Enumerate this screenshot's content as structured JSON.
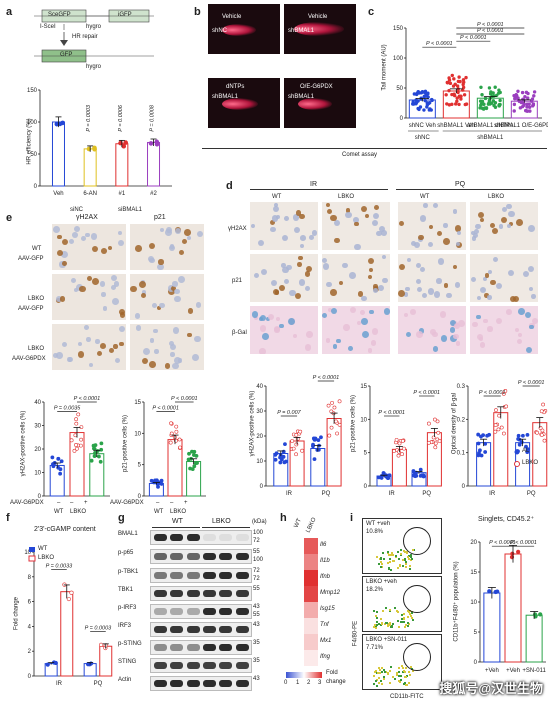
{
  "panels": {
    "a": {
      "letter": "a",
      "schematic": {
        "scegfp": "SceGFP",
        "igfp": "iGFP",
        "isce": "I-SceI",
        "hygro": "hygro",
        "hr": "HR repair",
        "gfp": "GFP",
        "hygro2": "hygro"
      },
      "ylabel": "HR efficiency (%)",
      "yticks": [
        "0",
        "50",
        "100",
        "150"
      ],
      "categories": [
        "Veh",
        "6-AN",
        "#1",
        "#2"
      ],
      "pvals": [
        "P = 0.0003",
        "P = 0.0006",
        "P = 0.0008"
      ],
      "groups": [
        "siNC",
        "siBMAL1"
      ]
    },
    "b": {
      "letter": "b",
      "labels": [
        "Vehicle",
        "Vehicle",
        "dNTPs",
        "O/E-G6PDX"
      ],
      "sublabels": [
        "shNC",
        "shBMAL1",
        "shBMAL1",
        "shBMAL1"
      ],
      "footer": "Comet assay"
    },
    "c": {
      "letter": "c",
      "ylabel": "Tail moment (AU)",
      "yticks": [
        "0",
        "50",
        "100",
        "150"
      ],
      "categories": [
        "Veh",
        "Veh",
        "dNTPs",
        "O/E-G6PDX"
      ],
      "groups": [
        "shNC",
        "shBMAL1"
      ],
      "pvals": [
        "P < 0.0001",
        "P < 0.0001",
        "P < 0.0001",
        "P < 0.0001"
      ]
    },
    "d": {
      "letter": "d",
      "headers": [
        "IR",
        "PQ"
      ],
      "cols": [
        "WT",
        "LBKO",
        "WT",
        "LBKO"
      ],
      "rows": [
        "γH2AX",
        "p21",
        "β-Gal"
      ],
      "charts": [
        {
          "ylabel": "γH2AX-positive cells (%)",
          "pvals": [
            "P = 0.007",
            "P < 0.0001"
          ],
          "yticks": [
            "0",
            "10",
            "20",
            "30",
            "40"
          ]
        },
        {
          "ylabel": "p21-positive cells (%)",
          "pvals": [
            "P < 0.0001",
            "P < 0.0001"
          ],
          "yticks": [
            "0",
            "5",
            "10",
            "15"
          ]
        },
        {
          "ylabel": "Optical density of β-gal",
          "pvals": [
            "P < 0.0001",
            "P < 0.0001"
          ],
          "yticks": [
            "0",
            "0.1",
            "0.2",
            "0.3"
          ]
        }
      ],
      "xcats": [
        "IR",
        "PQ"
      ],
      "legend": [
        "AL",
        "LBKO"
      ]
    },
    "e": {
      "letter": "e",
      "cols": [
        "γH2AX",
        "p21"
      ],
      "rows": [
        [
          "WT",
          "AAV-GFP"
        ],
        [
          "LBKO",
          "AAV-GFP"
        ],
        [
          "LBKO",
          "AAV-G6PDX"
        ]
      ],
      "charts": [
        {
          "ylabel": "γH2AX-positive cells (%)",
          "pvals": [
            "P = 0.0035",
            "P < 0.0001"
          ],
          "yticks": [
            "0",
            "10",
            "20",
            "30",
            "40"
          ]
        },
        {
          "ylabel": "p21-positive cells (%)",
          "pvals": [
            "P < 0.0001",
            "P < 0.0001"
          ],
          "yticks": [
            "0",
            "5",
            "10",
            "15"
          ]
        }
      ],
      "aav": "AAV-G6PDX",
      "signs": [
        "–",
        "–",
        "+"
      ],
      "xcats": [
        "WT",
        "LBKO"
      ]
    },
    "f": {
      "letter": "f",
      "title": "2'3'-cGAMP content",
      "legend": [
        "WT",
        "LBKO"
      ],
      "ylabel": "Fold change",
      "yticks": [
        "0",
        "2",
        "4",
        "6",
        "8",
        "10"
      ],
      "pvals": [
        "P = 0.0033",
        "P = 0.0003"
      ],
      "xcats": [
        "IR",
        "PQ"
      ]
    },
    "g": {
      "letter": "g",
      "groups": [
        "WT",
        "LBKO"
      ],
      "kda": "(kDa)",
      "proteins": [
        "BMAL1",
        "p-p65",
        "p-TBK1",
        "TBK1",
        "p-IRF3",
        "IRF3",
        "p-STING",
        "STING",
        "Actin"
      ],
      "weights": [
        "100",
        "72",
        "55",
        "100",
        "72",
        "72",
        "55",
        "43",
        "55",
        "43",
        "35",
        "35",
        "43"
      ]
    },
    "h": {
      "letter": "h",
      "cols": [
        "WT",
        "LBKO"
      ],
      "genes": [
        "Il6",
        "Il1b",
        "Ifnb",
        "Mmp12",
        "Isg15",
        "Tnf",
        "Mx1",
        "Ifng"
      ],
      "scale": [
        "0",
        "1",
        "2",
        "3"
      ],
      "scale_label": [
        "Fold",
        "change"
      ]
    },
    "i": {
      "letter": "i",
      "flow": [
        {
          "name": "WT +veh",
          "pct": "10.8%"
        },
        {
          "name": "LBKO +veh",
          "pct": "18.2%"
        },
        {
          "name": "LBKO +SN-011",
          "pct": "7.71%"
        }
      ],
      "yaxis": "F4/80-PE",
      "xaxis": "CD11b-FITC",
      "bar_title": "Singlets, CD45.2⁺",
      "bar_ylabel": "CD11b⁺F4/80⁺ population (%)",
      "yticks": [
        "0",
        "5",
        "10",
        "15",
        "20"
      ],
      "pvals": [
        "P < 0.0001",
        "P < 0.0001"
      ],
      "xcats": [
        "+Veh",
        "+Veh",
        "+SN-011"
      ]
    },
    "watermark": "搜狐号@汉世生物"
  },
  "chart_data": [
    {
      "type": "bar",
      "panel": "a",
      "categories": [
        "Veh",
        "6-AN",
        "#1",
        "#2"
      ],
      "values": [
        100,
        58,
        66,
        68
      ],
      "ylabel": "HR efficiency (%)",
      "ylim": [
        0,
        150
      ]
    },
    {
      "type": "bar",
      "panel": "c",
      "categories": [
        "shNC Veh",
        "shBMAL1 Veh",
        "shBMAL1 dNTPs",
        "shBMAL1 O/E-G6PDX"
      ],
      "values": [
        30,
        45,
        33,
        28
      ],
      "ylabel": "Tail moment (AU)",
      "ylim": [
        0,
        150
      ]
    },
    {
      "type": "bar",
      "panel": "d-1",
      "categories": [
        "IR",
        "PQ"
      ],
      "series": [
        {
          "name": "AL",
          "values": [
            13,
            15
          ]
        },
        {
          "name": "LBKO",
          "values": [
            18,
            27
          ]
        }
      ],
      "ylabel": "γH2AX-positive cells (%)",
      "ylim": [
        0,
        40
      ]
    },
    {
      "type": "bar",
      "panel": "d-2",
      "categories": [
        "IR",
        "PQ"
      ],
      "series": [
        {
          "name": "AL",
          "values": [
            1.5,
            2.0
          ]
        },
        {
          "name": "LBKO",
          "values": [
            5.5,
            8
          ]
        }
      ],
      "ylabel": "p21-positive cells (%)",
      "ylim": [
        0,
        15
      ]
    },
    {
      "type": "bar",
      "panel": "d-3",
      "categories": [
        "IR",
        "PQ"
      ],
      "series": [
        {
          "name": "AL",
          "values": [
            0.13,
            0.13
          ]
        },
        {
          "name": "LBKO",
          "values": [
            0.22,
            0.19
          ]
        }
      ],
      "ylabel": "Optical density of β-gal",
      "ylim": [
        0,
        0.3
      ]
    },
    {
      "type": "bar",
      "panel": "e-1",
      "categories": [
        "WT AAV-GFP",
        "LBKO AAV-GFP",
        "LBKO AAV-G6PDX"
      ],
      "values": [
        13,
        27,
        18
      ],
      "ylabel": "γH2AX-positive cells (%)",
      "ylim": [
        0,
        40
      ]
    },
    {
      "type": "bar",
      "panel": "e-2",
      "categories": [
        "WT AAV-GFP",
        "LBKO AAV-GFP",
        "LBKO AAV-G6PDX"
      ],
      "values": [
        2,
        9,
        5.5
      ],
      "ylabel": "p21-positive cells (%)",
      "ylim": [
        0,
        15
      ]
    },
    {
      "type": "bar",
      "panel": "f",
      "categories": [
        "IR",
        "PQ"
      ],
      "series": [
        {
          "name": "WT",
          "values": [
            1,
            1
          ]
        },
        {
          "name": "LBKO",
          "values": [
            6.8,
            2.4
          ]
        }
      ],
      "ylabel": "Fold change",
      "ylim": [
        0,
        10
      ]
    },
    {
      "type": "heatmap",
      "panel": "h",
      "rows": [
        "Il6",
        "Il1b",
        "Ifnb",
        "Mmp12",
        "Isg15",
        "Tnf",
        "Mx1",
        "Ifng"
      ],
      "cols": [
        "WT",
        "LBKO"
      ],
      "values": [
        [
          1,
          2.6
        ],
        [
          1,
          2.2
        ],
        [
          1,
          3
        ],
        [
          1,
          2.8
        ],
        [
          1,
          1.8
        ],
        [
          1,
          1.3
        ],
        [
          1,
          1.5
        ],
        [
          1,
          1.2
        ]
      ]
    },
    {
      "type": "bar",
      "panel": "i",
      "categories": [
        "WT +Veh",
        "LBKO +Veh",
        "LBKO +SN-011"
      ],
      "values": [
        11.5,
        18,
        7.8
      ],
      "ylabel": "CD11b⁺F4/80⁺ population (%)",
      "ylim": [
        0,
        20
      ]
    }
  ]
}
